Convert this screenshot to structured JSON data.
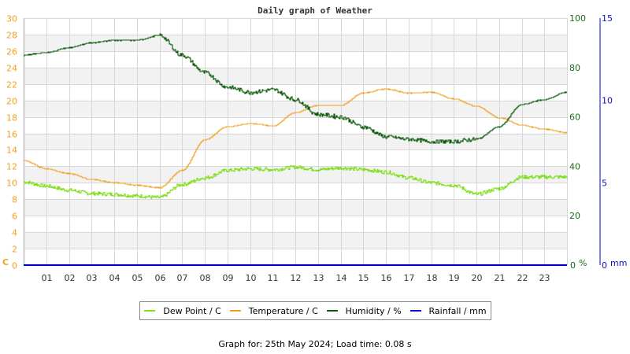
{
  "chart_data": {
    "type": "line",
    "title": "Daily graph of Weather",
    "x_ticks": [
      "01",
      "02",
      "03",
      "04",
      "05",
      "06",
      "07",
      "08",
      "09",
      "10",
      "11",
      "12",
      "13",
      "14",
      "15",
      "16",
      "17",
      "18",
      "19",
      "20",
      "21",
      "22",
      "23"
    ],
    "xlabel": "",
    "axes": {
      "left": {
        "label": "C",
        "range": [
          0,
          30
        ],
        "ticks": [
          0,
          2,
          4,
          6,
          8,
          10,
          12,
          14,
          16,
          18,
          20,
          22,
          24,
          26,
          28,
          30
        ],
        "color": "#f0a020"
      },
      "humidity": {
        "label": "%",
        "range": [
          0,
          100
        ],
        "ticks": [
          0,
          20,
          40,
          60,
          80,
          100
        ],
        "color": "#1a6a1a"
      },
      "rain": {
        "label": "mm",
        "range": [
          0,
          15
        ],
        "ticks": [
          0,
          5,
          10,
          15
        ],
        "color": "#1010c0"
      }
    },
    "x": [
      0,
      1,
      2,
      3,
      4,
      5,
      6,
      7,
      8,
      9,
      10,
      11,
      12,
      13,
      14,
      15,
      16,
      17,
      18,
      19,
      20,
      21,
      22,
      23,
      24
    ],
    "series": [
      {
        "name": "Dew Point / C",
        "color": "#80e020",
        "axis": "left",
        "values": [
          10.1,
          9.6,
          9.1,
          8.7,
          8.6,
          8.4,
          8.2,
          9.8,
          10.6,
          11.5,
          11.7,
          11.6,
          11.9,
          11.6,
          11.8,
          11.6,
          11.3,
          10.6,
          10.0,
          9.7,
          8.6,
          9.3,
          10.7,
          10.7,
          10.7
        ]
      },
      {
        "name": "Temperature / C",
        "color": "#f0a020",
        "axis": "left",
        "values": [
          12.7,
          11.7,
          11.1,
          10.4,
          10.0,
          9.7,
          9.4,
          11.5,
          15.2,
          16.8,
          17.2,
          16.9,
          18.5,
          19.4,
          19.4,
          20.9,
          21.4,
          20.9,
          21.0,
          20.2,
          19.3,
          17.9,
          17.0,
          16.5,
          16.1
        ]
      },
      {
        "name": "Humidity / %",
        "color": "#0a5a0a",
        "axis": "humidity",
        "values": [
          85,
          86,
          88,
          90,
          91,
          91,
          93,
          85,
          78,
          72,
          70,
          71,
          67,
          61,
          60,
          56,
          52,
          51,
          50,
          50,
          51,
          56,
          65,
          67,
          70
        ]
      },
      {
        "name": "Rainfall / mm",
        "color": "#0000cc",
        "axis": "rain",
        "values": [
          0,
          0,
          0,
          0,
          0,
          0,
          0,
          0,
          0,
          0,
          0,
          0,
          0,
          0,
          0,
          0,
          0,
          0,
          0,
          0,
          0,
          0,
          0,
          0,
          0
        ]
      }
    ],
    "grid": true,
    "legend_position": "bottom"
  },
  "legend": {
    "dew": "Dew Point / C",
    "temp": "Temperature / C",
    "hum": "Humidity / %",
    "rain": "Rainfall / mm"
  },
  "footer": "Graph for: 25th May 2024; Load time: 0.08 s"
}
